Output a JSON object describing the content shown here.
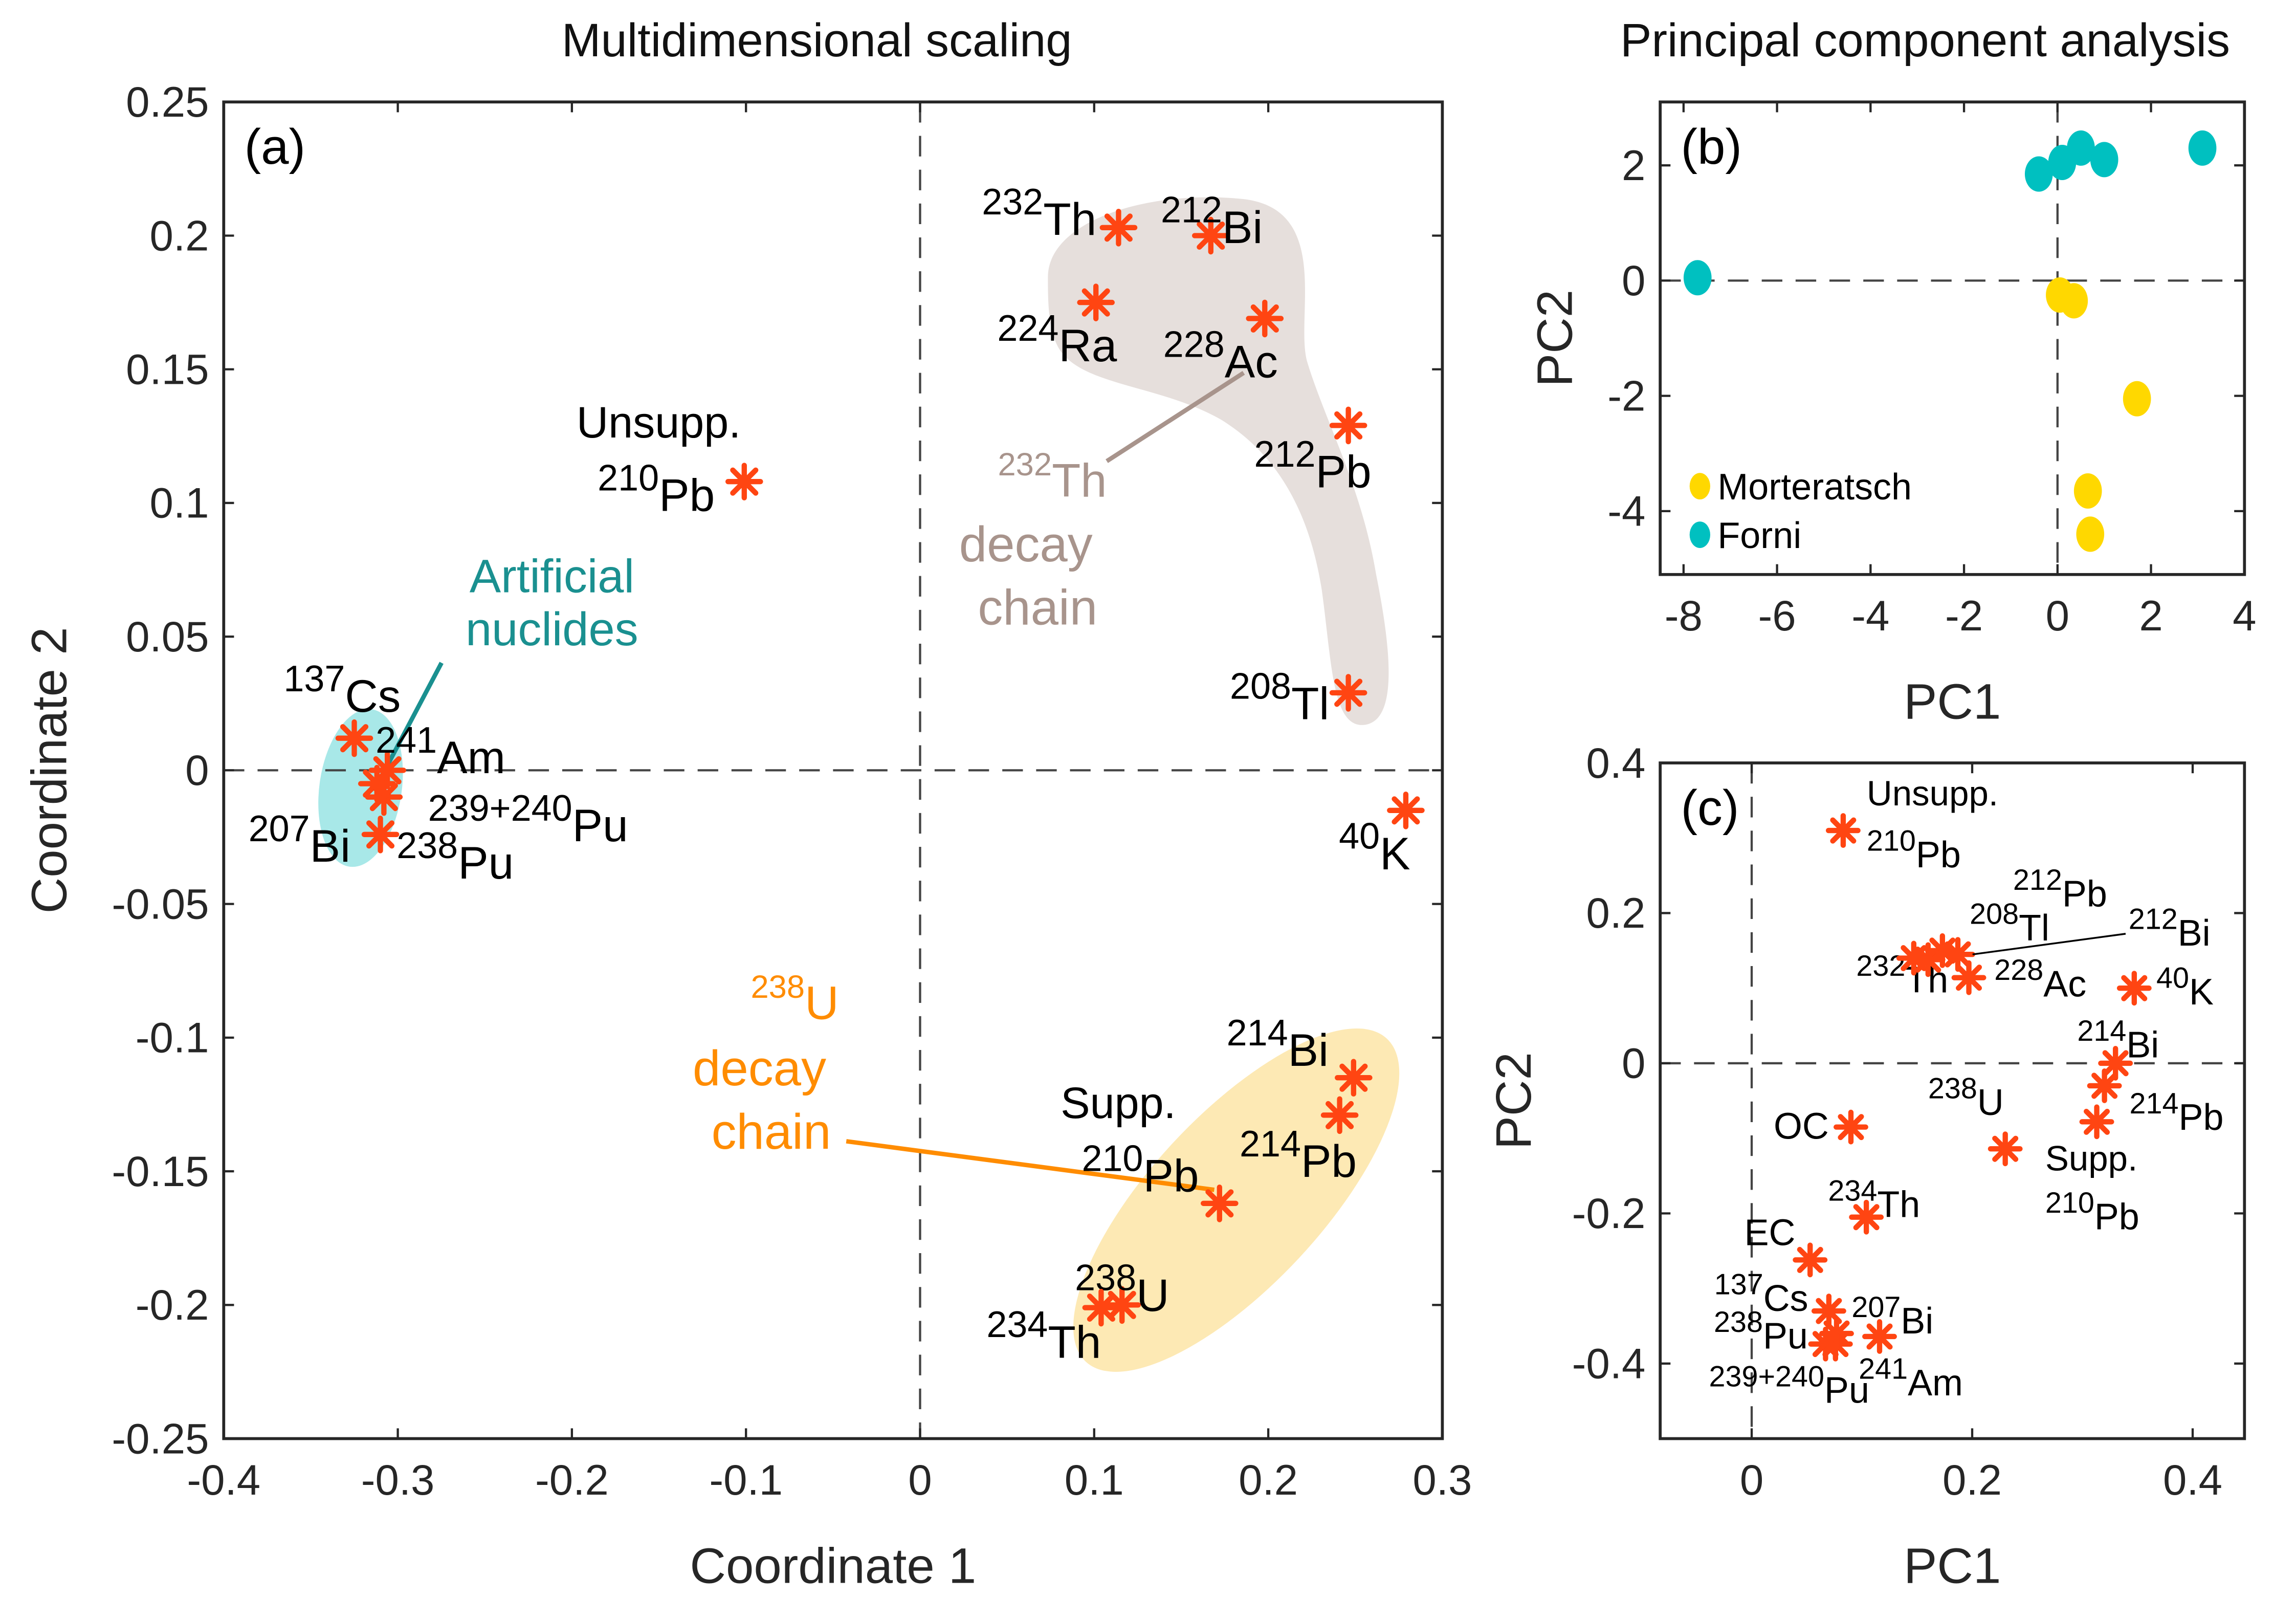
{
  "colors": {
    "marker": "#ff4512",
    "morteratsch": "#ffd800",
    "forni": "#00c0c0",
    "artificial": "#1a9090",
    "th_chain": "#a8948c",
    "u_chain": "#ff8c00",
    "th_blob": "#e6dfdc",
    "art_blob": "#a8e8e8",
    "u_blob": "#fde9b4"
  },
  "chart_data": [
    {
      "type": "scatter",
      "panel": "(a)",
      "title": "Multidimensional scaling",
      "xlabel": "Coordinate 1",
      "ylabel": "Coordinate 2",
      "xlim": [
        -0.4,
        0.3
      ],
      "ylim": [
        -0.25,
        0.25
      ],
      "xticks": [
        "-0.4",
        "-0.3",
        "-0.2",
        "-0.1",
        "0",
        "0.1",
        "0.2",
        "0.3"
      ],
      "yticks": [
        "0.25",
        "0.2",
        "0.15",
        "0.1",
        "0.05",
        "0",
        "-0.05",
        "-0.1",
        "-0.15",
        "-0.2",
        "-0.25"
      ],
      "points": [
        {
          "mass": "232",
          "sym": "Th",
          "x": 0.114,
          "y": 0.203
        },
        {
          "mass": "212",
          "sym": "Bi",
          "x": 0.167,
          "y": 0.2
        },
        {
          "mass": "224",
          "sym": "Ra",
          "x": 0.101,
          "y": 0.175
        },
        {
          "mass": "228",
          "sym": "Ac",
          "x": 0.198,
          "y": 0.169
        },
        {
          "mass": "212",
          "sym": "Pb",
          "x": 0.246,
          "y": 0.129
        },
        {
          "mass": "208",
          "sym": "Tl",
          "x": 0.246,
          "y": 0.029
        },
        {
          "mass": "40",
          "sym": "K",
          "x": 0.279,
          "y": -0.015
        },
        {
          "pre": "Unsupp.",
          "mass": "210",
          "sym": "Pb",
          "x": -0.101,
          "y": 0.108
        },
        {
          "mass": "137",
          "sym": "Cs",
          "x": -0.325,
          "y": 0.012
        },
        {
          "mass": "241",
          "sym": "Am",
          "x": -0.306,
          "y": 0.0
        },
        {
          "mass": "239+240",
          "sym": "Pu",
          "x": -0.308,
          "y": -0.01
        },
        {
          "mass": "207",
          "sym": "Bi",
          "x": -0.312,
          "y": -0.005
        },
        {
          "mass": "238",
          "sym": "Pu",
          "x": -0.31,
          "y": -0.024
        },
        {
          "mass": "214",
          "sym": "Bi",
          "x": 0.249,
          "y": -0.115
        },
        {
          "mass": "214",
          "sym": "Pb",
          "x": 0.241,
          "y": -0.129
        },
        {
          "pre": "Supp.",
          "mass": "210",
          "sym": "Pb",
          "x": 0.172,
          "y": -0.162
        },
        {
          "mass": "238",
          "sym": "U",
          "x": 0.116,
          "y": -0.2
        },
        {
          "mass": "234",
          "sym": "Th",
          "x": 0.104,
          "y": -0.201
        }
      ],
      "annotations": {
        "artificial": [
          "Artificial",
          "nuclides"
        ],
        "th_chain": {
          "mass": "232",
          "sym": "Th",
          "lines": [
            "decay",
            "chain"
          ]
        },
        "u_chain": {
          "mass": "238",
          "sym": "U",
          "lines": [
            "decay",
            "chain"
          ]
        }
      }
    },
    {
      "type": "scatter",
      "panel": "(b)",
      "title": "Principal component analysis",
      "xlabel": "PC1",
      "ylabel": "PC2",
      "xlim": [
        -8.5,
        4
      ],
      "ylim": [
        -5.1,
        3.1
      ],
      "xticks": [
        -8,
        -6,
        -4,
        -2,
        0,
        2,
        4
      ],
      "yticks": [
        2,
        0,
        -2,
        -4
      ],
      "legend_position": "bottom-left",
      "series": [
        {
          "name": "Morteratsch",
          "points": [
            [
              0.05,
              -0.25
            ],
            [
              0.35,
              -0.35
            ],
            [
              1.7,
              -2.05
            ],
            [
              0.65,
              -3.65
            ],
            [
              0.7,
              -4.4
            ]
          ]
        },
        {
          "name": "Forni",
          "points": [
            [
              -7.7,
              0.05
            ],
            [
              -0.4,
              1.85
            ],
            [
              0.1,
              2.05
            ],
            [
              0.5,
              2.3
            ],
            [
              1.0,
              2.1
            ],
            [
              3.1,
              2.3
            ]
          ]
        }
      ]
    },
    {
      "type": "scatter",
      "panel": "(c)",
      "xlabel": "PC1",
      "ylabel": "PC2",
      "xlim": [
        -0.083,
        0.447
      ],
      "ylim": [
        -0.5,
        0.4
      ],
      "xticks": [
        "0",
        "0.2",
        "0.4"
      ],
      "yticks": [
        "0.4",
        "0.2",
        "0",
        "-0.2",
        "-0.4"
      ],
      "points": [
        {
          "pre": "Unsupp.",
          "mass": "210",
          "sym": "Pb",
          "x": 0.083,
          "y": 0.31
        },
        {
          "mass": "232",
          "sym": "Th",
          "x": 0.197,
          "y": 0.114
        },
        {
          "mass": "228",
          "sym": "Ac",
          "x": 0.16,
          "y": 0.138
        },
        {
          "mass": "208",
          "sym": "Tl",
          "x": 0.147,
          "y": 0.14
        },
        {
          "mass": "212",
          "sym": "Pb",
          "x": 0.173,
          "y": 0.15
        },
        {
          "mass": "212",
          "sym": "Bi",
          "x": 0.187,
          "y": 0.145
        },
        {
          "mass": "40",
          "sym": "K",
          "x": 0.347,
          "y": 0.1
        },
        {
          "mass": "214",
          "sym": "Bi",
          "x": 0.33,
          "y": 0.0
        },
        {
          "mass": "214",
          "sym": "Pb",
          "x": 0.32,
          "y": -0.03
        },
        {
          "pre": "Supp.",
          "mass": "210",
          "sym": "Pb",
          "x": 0.313,
          "y": -0.078
        },
        {
          "mass": "238",
          "sym": "U",
          "x": 0.23,
          "y": -0.114
        },
        {
          "mass": "",
          "sym": "OC",
          "x": 0.09,
          "y": -0.085
        },
        {
          "mass": "234",
          "sym": "Th",
          "x": 0.104,
          "y": -0.205
        },
        {
          "mass": "",
          "sym": "EC",
          "x": 0.053,
          "y": -0.262
        },
        {
          "mass": "137",
          "sym": "Cs",
          "x": 0.07,
          "y": -0.33
        },
        {
          "mass": "238",
          "sym": "Pu",
          "x": 0.067,
          "y": -0.374
        },
        {
          "mass": "239+240",
          "sym": "Pu",
          "x": 0.076,
          "y": -0.374
        },
        {
          "mass": "207",
          "sym": "Bi",
          "x": 0.116,
          "y": -0.364
        },
        {
          "mass": "241",
          "sym": "Am",
          "x": 0.077,
          "y": -0.36
        }
      ]
    }
  ]
}
